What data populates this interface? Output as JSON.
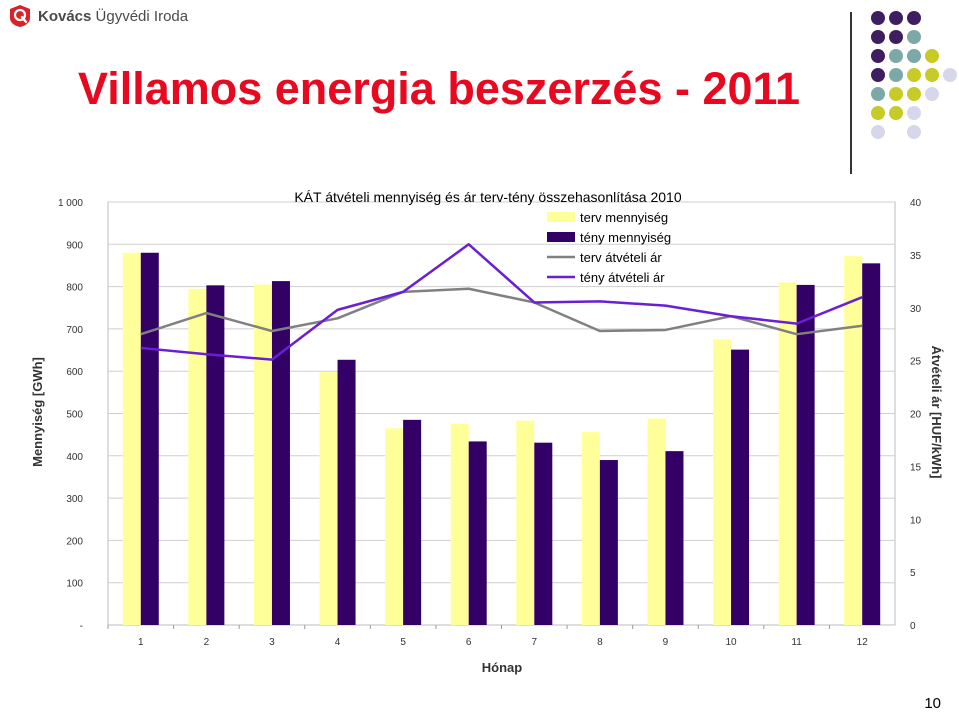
{
  "header": {
    "brand_bold": "Kovács",
    "brand_rest": " Ügyvédi Iroda",
    "logo_icon": "law-firm-logo-icon",
    "title": "Villamos energia beszerzés - 2011"
  },
  "decoration": {
    "dots": [
      [
        "#3e1e5e",
        "#3e1e5e",
        "#3e1e5e",
        null,
        null
      ],
      [
        "#3e1e5e",
        "#3e1e5e",
        "#7ca8a8",
        null,
        null
      ],
      [
        "#3e1e5e",
        "#7ca8a8",
        "#7ca8a8",
        "#c7cb27",
        null
      ],
      [
        "#3e1e5e",
        "#7ca8a8",
        "#c7cb27",
        "#c7cb27",
        "#d7d7eb"
      ],
      [
        "#7ca8a8",
        "#c7cb27",
        "#c7cb27",
        "#d7d7eb",
        null
      ],
      [
        "#c7cb27",
        "#c7cb27",
        "#d7d7eb",
        null,
        null
      ],
      [
        "#d7d7eb",
        null,
        "#d7d7eb",
        null,
        null
      ]
    ]
  },
  "page_number": "10",
  "chart_data": {
    "type": "bar",
    "title": "KÁT átvételi mennyiség és ár terv-tény összehasonlítása 2010",
    "xlabel": "Hónap",
    "ylabel": "Mennyiség [GWh]",
    "y2label": "Átvételi ár [HUF/kWh]",
    "categories": [
      "1",
      "2",
      "3",
      "4",
      "5",
      "6",
      "7",
      "8",
      "9",
      "10",
      "11",
      "12"
    ],
    "ylim": [
      0,
      1000
    ],
    "y2lim": [
      0,
      40
    ],
    "yticks": [
      "-",
      "100",
      "200",
      "300",
      "400",
      "500",
      "600",
      "700",
      "800",
      "900",
      "1 000"
    ],
    "y2ticks": [
      "0",
      "5",
      "10",
      "15",
      "20",
      "25",
      "30",
      "35",
      "40"
    ],
    "grid": true,
    "legend_position": "top-right",
    "series": [
      {
        "name": "terv mennyiség",
        "type": "bar",
        "axis": "left",
        "color": "#ffff99",
        "values": [
          880,
          795,
          805,
          598,
          465,
          476,
          483,
          456,
          488,
          675,
          810,
          872
        ]
      },
      {
        "name": "tény mennyiség",
        "type": "bar",
        "axis": "left",
        "color": "#330066",
        "values": [
          880,
          803,
          813,
          627,
          485,
          434,
          431,
          390,
          411,
          651,
          804,
          855
        ]
      },
      {
        "name": "terv átvételi ár",
        "type": "line",
        "axis": "right",
        "color": "#808080",
        "values": [
          27.5,
          29.5,
          27.8,
          29.0,
          31.5,
          31.8,
          30.5,
          27.8,
          27.9,
          29.2,
          27.5,
          28.3
        ]
      },
      {
        "name": "tény átvételi ár",
        "type": "line",
        "axis": "right",
        "color": "#6a1ed6",
        "values": [
          26.2,
          25.6,
          25.1,
          29.8,
          31.5,
          36.0,
          30.5,
          30.6,
          30.2,
          29.2,
          28.5,
          31.0
        ]
      }
    ]
  }
}
